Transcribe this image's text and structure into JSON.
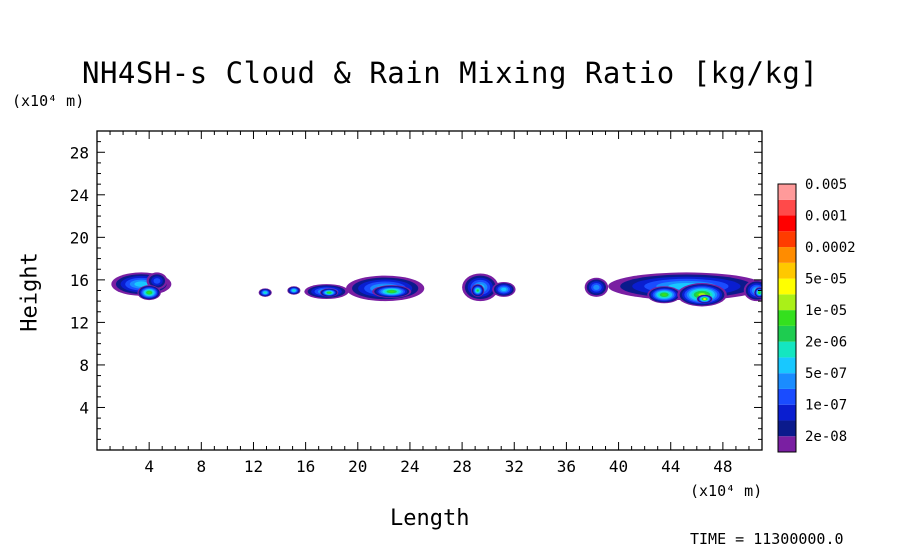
{
  "chart_data": {
    "type": "heatmap",
    "title": "NH4SH-s Cloud & Rain Mixing Ratio [kg/kg]",
    "xlabel": "Length",
    "ylabel": "Height",
    "x_unit": "(x10⁴ m)",
    "y_unit": "(x10⁴ m)",
    "xlim": [
      0,
      51
    ],
    "ylim": [
      0,
      30
    ],
    "x_ticks": [
      4,
      8,
      12,
      16,
      20,
      24,
      28,
      32,
      36,
      40,
      44,
      48
    ],
    "y_ticks": [
      4,
      8,
      12,
      16,
      20,
      24,
      28
    ],
    "time_label": "TIME = 11300000.0",
    "colorbar": {
      "colors": [
        "#7a1fa2",
        "#0b1a8c",
        "#0a1ed0",
        "#1a4cff",
        "#1a8cff",
        "#18c8ff",
        "#14e6c0",
        "#1ecc50",
        "#34e01e",
        "#aaf018",
        "#ffff00",
        "#ffc800",
        "#ff8c00",
        "#ff3c00",
        "#ff0000",
        "#ff4a4a",
        "#ff9a9a"
      ],
      "labels": [
        "2e-08",
        "1e-07",
        "5e-07",
        "2e-06",
        "1e-05",
        "5e-05",
        "0.0002",
        "0.001",
        "0.005"
      ]
    },
    "blobs": [
      {
        "x": 3.4,
        "y": 15.6,
        "rx": 2.3,
        "ry": 1.1,
        "level": 5
      },
      {
        "x": 4.6,
        "y": 15.9,
        "rx": 0.8,
        "ry": 0.8,
        "level": 3
      },
      {
        "x": 4.0,
        "y": 14.8,
        "rx": 0.9,
        "ry": 0.7,
        "level": 8
      },
      {
        "x": 12.9,
        "y": 14.8,
        "rx": 0.5,
        "ry": 0.4,
        "level": 6
      },
      {
        "x": 15.1,
        "y": 15.0,
        "rx": 0.5,
        "ry": 0.4,
        "level": 6
      },
      {
        "x": 17.6,
        "y": 14.9,
        "rx": 1.7,
        "ry": 0.7,
        "level": 5
      },
      {
        "x": 17.8,
        "y": 14.8,
        "rx": 0.7,
        "ry": 0.4,
        "level": 8
      },
      {
        "x": 22.1,
        "y": 15.2,
        "rx": 3.0,
        "ry": 1.2,
        "level": 5
      },
      {
        "x": 22.6,
        "y": 14.9,
        "rx": 1.5,
        "ry": 0.6,
        "level": 8
      },
      {
        "x": 29.4,
        "y": 15.3,
        "rx": 1.4,
        "ry": 1.3,
        "level": 5
      },
      {
        "x": 29.2,
        "y": 15.0,
        "rx": 0.5,
        "ry": 0.6,
        "level": 7
      },
      {
        "x": 31.2,
        "y": 15.1,
        "rx": 0.9,
        "ry": 0.7,
        "level": 5
      },
      {
        "x": 38.3,
        "y": 15.3,
        "rx": 0.9,
        "ry": 0.9,
        "level": 4
      },
      {
        "x": 45.2,
        "y": 15.4,
        "rx": 6.0,
        "ry": 1.3,
        "level": 5
      },
      {
        "x": 43.5,
        "y": 14.6,
        "rx": 1.3,
        "ry": 0.8,
        "level": 8
      },
      {
        "x": 46.4,
        "y": 14.6,
        "rx": 1.9,
        "ry": 1.1,
        "level": 9
      },
      {
        "x": 46.6,
        "y": 14.2,
        "rx": 0.6,
        "ry": 0.4,
        "level": 10
      },
      {
        "x": 50.6,
        "y": 15.0,
        "rx": 1.0,
        "ry": 1.0,
        "level": 5
      },
      {
        "x": 50.8,
        "y": 14.8,
        "rx": 0.4,
        "ry": 0.5,
        "level": 8
      }
    ]
  }
}
